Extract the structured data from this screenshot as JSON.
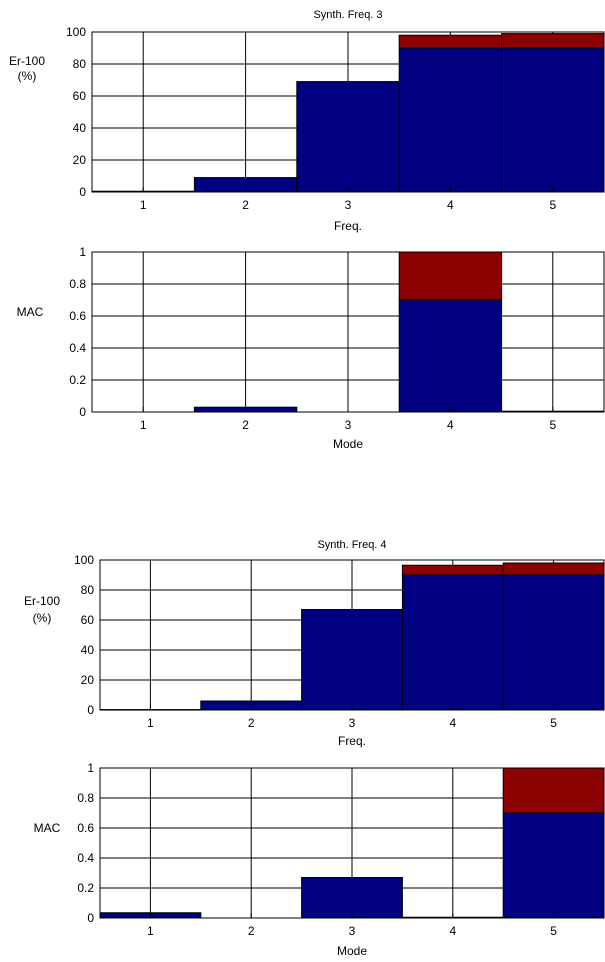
{
  "colors": {
    "blue": "#000080",
    "red": "#8B0000",
    "grid": "#000000",
    "axis": "#000000"
  },
  "chart_data": [
    {
      "type": "bar",
      "stacked": true,
      "title": "Synth. Freq. 3",
      "xlabel": "Freq.",
      "ylabel": [
        "Er-100",
        "(%)"
      ],
      "categories": [
        "1",
        "2",
        "3",
        "4",
        "5"
      ],
      "ylim": [
        0,
        100
      ],
      "yticks": [
        "0",
        "20",
        "40",
        "60",
        "80",
        "100"
      ],
      "grid": true,
      "series": [
        {
          "color": "blue",
          "values": [
            0.5,
            9,
            69,
            90,
            90
          ]
        },
        {
          "color": "red",
          "values": [
            0,
            0,
            0,
            8,
            9
          ]
        }
      ]
    },
    {
      "type": "bar",
      "stacked": true,
      "title": "",
      "xlabel": "Mode",
      "ylabel": [
        "MAC"
      ],
      "categories": [
        "1",
        "2",
        "3",
        "4",
        "5"
      ],
      "ylim": [
        0,
        1
      ],
      "yticks": [
        "0",
        "0.2",
        "0.4",
        "0.6",
        "0.8",
        "1"
      ],
      "grid": true,
      "series": [
        {
          "color": "blue",
          "values": [
            0,
            0.03,
            0,
            0.7,
            0.005
          ]
        },
        {
          "color": "red",
          "values": [
            0,
            0,
            0,
            0.3,
            0
          ]
        }
      ]
    },
    {
      "type": "bar",
      "stacked": true,
      "title": "Synth. Freq. 4",
      "xlabel": "Freq.",
      "ylabel": [
        "Er-100",
        "(%)"
      ],
      "categories": [
        "1",
        "2",
        "3",
        "4",
        "5"
      ],
      "ylim": [
        0,
        100
      ],
      "yticks": [
        "0",
        "20",
        "40",
        "60",
        "80",
        "100"
      ],
      "grid": true,
      "series": [
        {
          "color": "blue",
          "values": [
            0.3,
            6,
            67,
            90,
            90
          ]
        },
        {
          "color": "red",
          "values": [
            0,
            0,
            0,
            6.5,
            8
          ]
        }
      ]
    },
    {
      "type": "bar",
      "stacked": true,
      "title": "",
      "xlabel": "Mode",
      "ylabel": [
        "MAC"
      ],
      "categories": [
        "1",
        "2",
        "3",
        "4",
        "5"
      ],
      "ylim": [
        0,
        1
      ],
      "yticks": [
        "0",
        "0.2",
        "0.4",
        "0.6",
        "0.8",
        "1"
      ],
      "grid": true,
      "series": [
        {
          "color": "blue",
          "values": [
            0.035,
            0,
            0.27,
            0.005,
            0.7
          ]
        },
        {
          "color": "red",
          "values": [
            0,
            0,
            0,
            0,
            0.3
          ]
        }
      ]
    }
  ]
}
